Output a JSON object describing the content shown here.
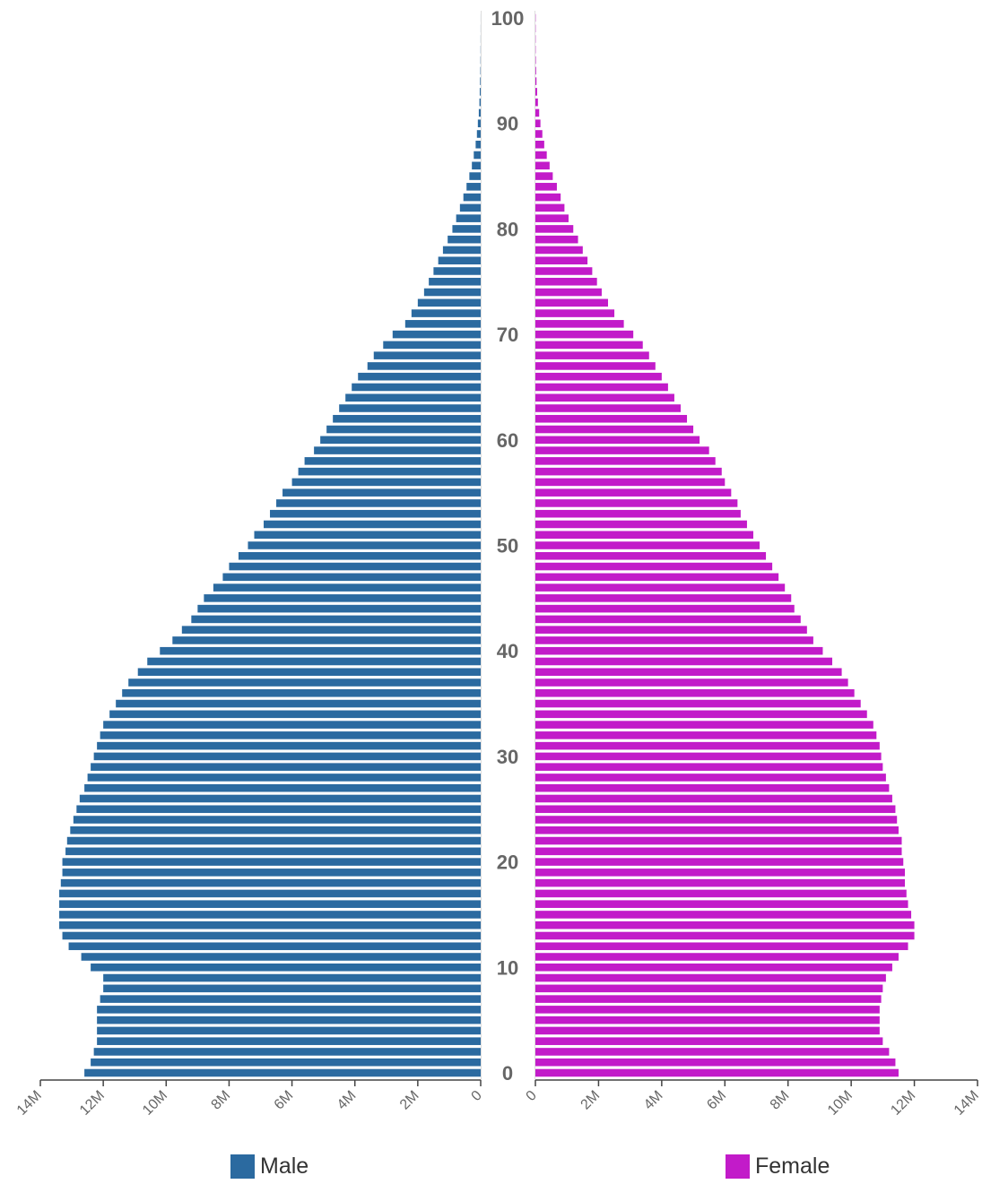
{
  "chart_data": {
    "type": "bar",
    "orientation": "horizontal",
    "subtype": "population-pyramid",
    "title": "",
    "colors": {
      "male": "#2b6aa0",
      "female": "#c21bc9",
      "axis": "#444444",
      "age_label": "#666666",
      "tick_label": "#666666"
    },
    "age_axis": {
      "min": 0,
      "max": 100,
      "ticks": [
        "0",
        "10",
        "20",
        "30",
        "40",
        "50",
        "60",
        "70",
        "80",
        "90",
        "100"
      ],
      "position": "center"
    },
    "value_axis": {
      "min": 0,
      "max": 14000000,
      "ticks": [
        "0",
        "2M",
        "4M",
        "6M",
        "8M",
        "10M",
        "12M",
        "14M"
      ]
    },
    "legend": {
      "position": "bottom",
      "items": [
        {
          "key": "male",
          "label": "Male"
        },
        {
          "key": "female",
          "label": "Female"
        }
      ]
    },
    "series": [
      {
        "name": "Male",
        "side": "left",
        "values": [
          12.6,
          12.4,
          12.3,
          12.2,
          12.2,
          12.2,
          12.2,
          12.1,
          12.0,
          12.0,
          12.4,
          12.7,
          13.1,
          13.3,
          13.4,
          13.4,
          13.4,
          13.4,
          13.35,
          13.3,
          13.3,
          13.2,
          13.15,
          13.05,
          12.95,
          12.85,
          12.75,
          12.6,
          12.5,
          12.4,
          12.3,
          12.2,
          12.1,
          12.0,
          11.8,
          11.6,
          11.4,
          11.2,
          10.9,
          10.6,
          10.2,
          9.8,
          9.5,
          9.2,
          9.0,
          8.8,
          8.5,
          8.2,
          8.0,
          7.7,
          7.4,
          7.2,
          6.9,
          6.7,
          6.5,
          6.3,
          6.0,
          5.8,
          5.6,
          5.3,
          5.1,
          4.9,
          4.7,
          4.5,
          4.3,
          4.1,
          3.9,
          3.6,
          3.4,
          3.1,
          2.8,
          2.4,
          2.2,
          2.0,
          1.8,
          1.65,
          1.5,
          1.35,
          1.2,
          1.05,
          0.9,
          0.78,
          0.66,
          0.55,
          0.45,
          0.36,
          0.28,
          0.22,
          0.16,
          0.12,
          0.09,
          0.06,
          0.04,
          0.03,
          0.02,
          0.012,
          0.008,
          0.005,
          0.003,
          0.002,
          0.001
        ]
      },
      {
        "name": "Female",
        "side": "right",
        "values": [
          11.5,
          11.4,
          11.2,
          11.0,
          10.9,
          10.9,
          10.9,
          10.95,
          11.0,
          11.1,
          11.3,
          11.5,
          11.8,
          12.0,
          12.0,
          11.9,
          11.8,
          11.75,
          11.7,
          11.7,
          11.65,
          11.6,
          11.6,
          11.5,
          11.45,
          11.4,
          11.3,
          11.2,
          11.1,
          11.0,
          10.95,
          10.9,
          10.8,
          10.7,
          10.5,
          10.3,
          10.1,
          9.9,
          9.7,
          9.4,
          9.1,
          8.8,
          8.6,
          8.4,
          8.2,
          8.1,
          7.9,
          7.7,
          7.5,
          7.3,
          7.1,
          6.9,
          6.7,
          6.5,
          6.4,
          6.2,
          6.0,
          5.9,
          5.7,
          5.5,
          5.2,
          5.0,
          4.8,
          4.6,
          4.4,
          4.2,
          4.0,
          3.8,
          3.6,
          3.4,
          3.1,
          2.8,
          2.5,
          2.3,
          2.1,
          1.95,
          1.8,
          1.65,
          1.5,
          1.35,
          1.2,
          1.05,
          0.92,
          0.8,
          0.68,
          0.55,
          0.45,
          0.36,
          0.28,
          0.22,
          0.16,
          0.12,
          0.08,
          0.055,
          0.035,
          0.022,
          0.014,
          0.009,
          0.005,
          0.003,
          0.002
        ]
      }
    ],
    "value_unit": "millions"
  }
}
